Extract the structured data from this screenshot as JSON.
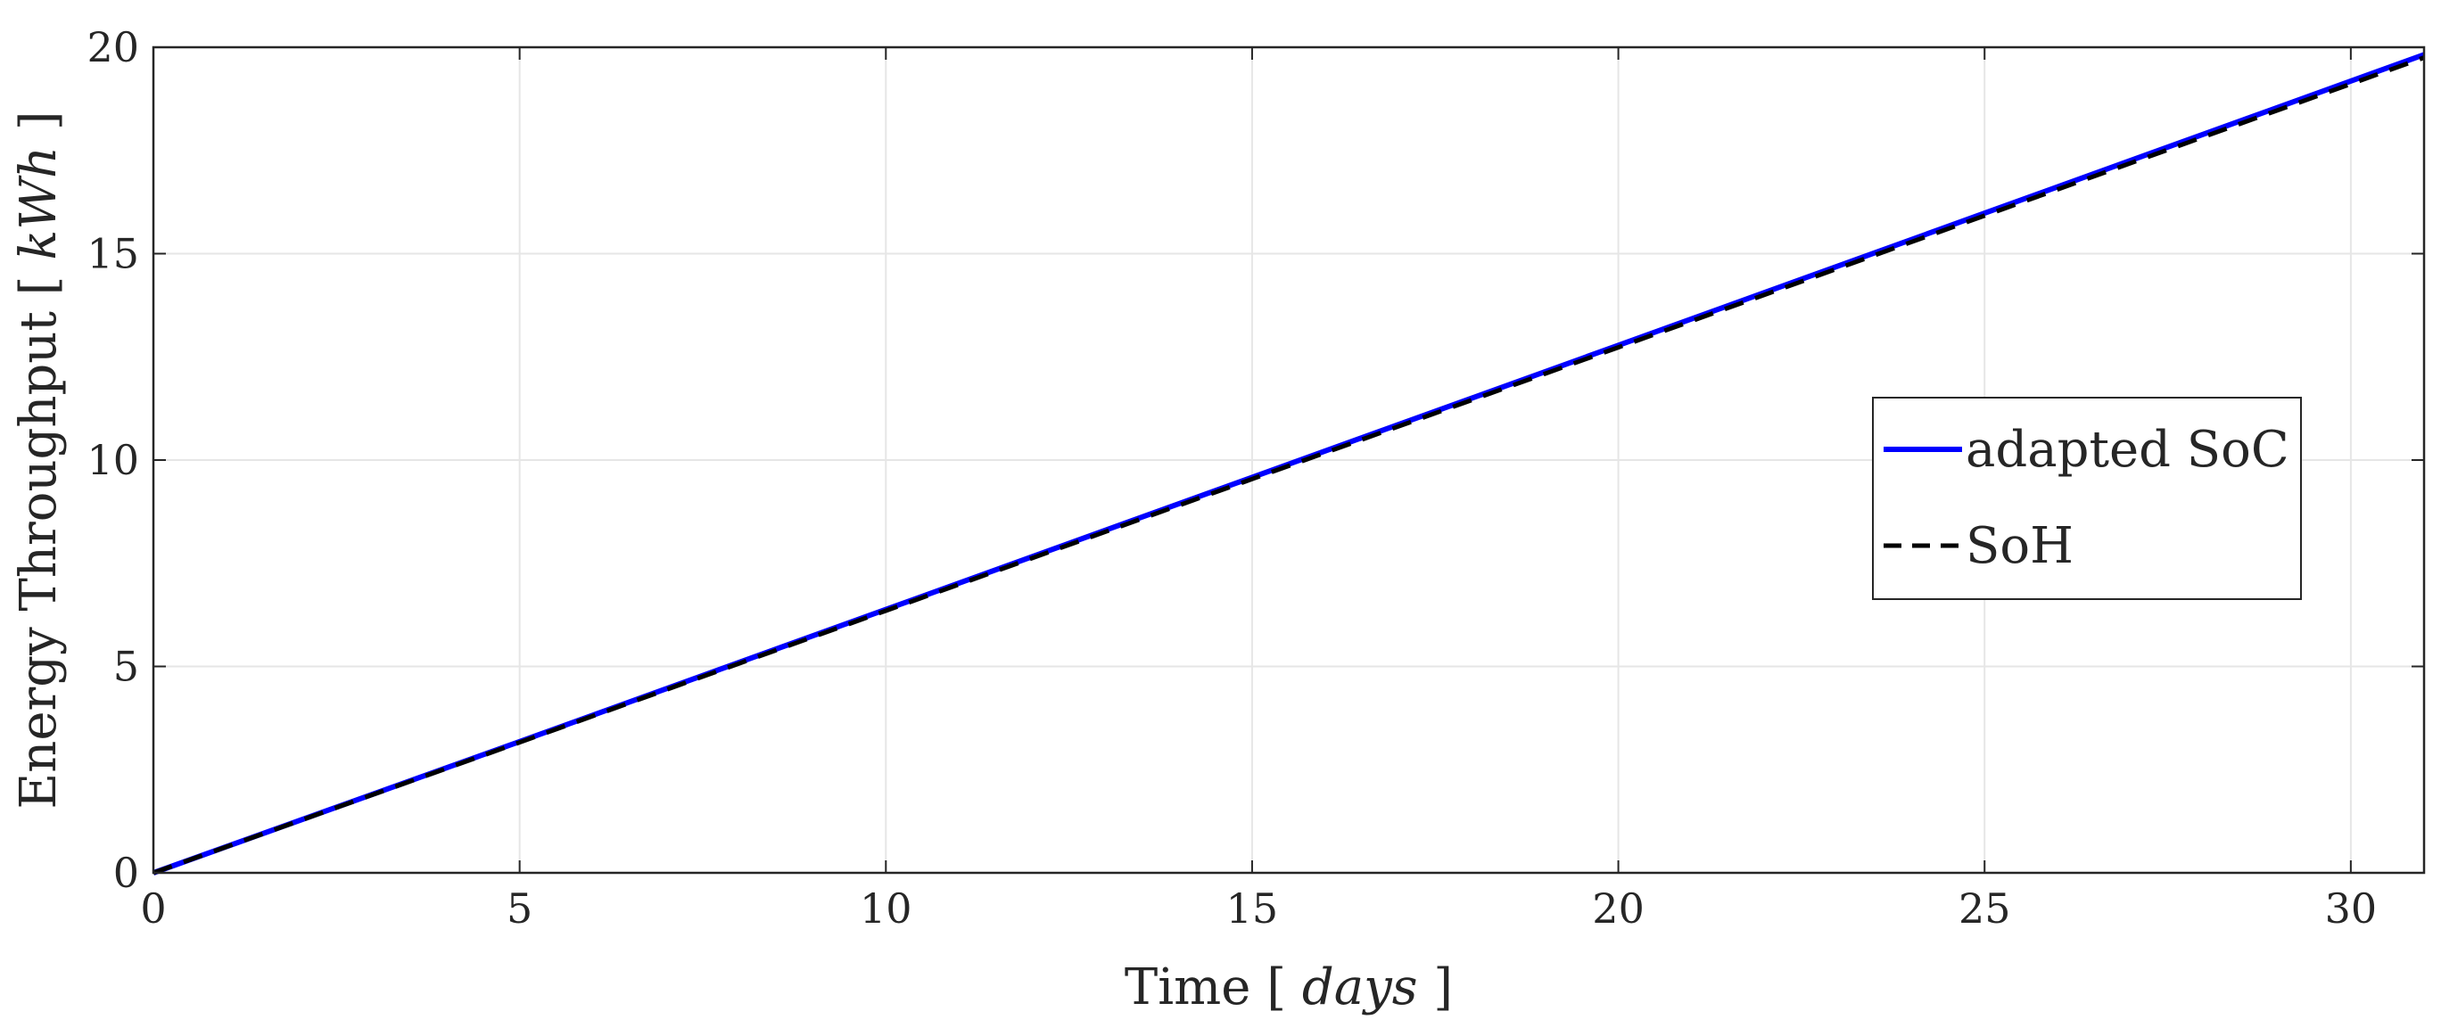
{
  "chart_data": {
    "type": "line",
    "title": "",
    "xlabel": "Time",
    "xlabel_unit": "days",
    "ylabel": "Energy Throughput",
    "ylabel_unit": "kWh",
    "xlim": [
      0,
      31
    ],
    "ylim": [
      0,
      20
    ],
    "xticks": [
      0,
      5,
      10,
      15,
      20,
      25,
      30
    ],
    "yticks": [
      0,
      5,
      10,
      15,
      20
    ],
    "grid": true,
    "legend_position": "center-right",
    "series": [
      {
        "name": "adapted SoC",
        "color": "#0000ff",
        "style": "solid",
        "x": [
          0,
          5,
          10,
          15,
          20,
          25,
          31
        ],
        "y": [
          0,
          3.18,
          6.38,
          9.58,
          12.78,
          15.98,
          19.82
        ]
      },
      {
        "name": "SoH",
        "color": "#000000",
        "style": "dashed",
        "x": [
          0,
          5,
          10,
          15,
          20,
          25,
          31
        ],
        "y": [
          0,
          3.16,
          6.35,
          9.54,
          12.73,
          15.92,
          19.75
        ]
      }
    ]
  }
}
